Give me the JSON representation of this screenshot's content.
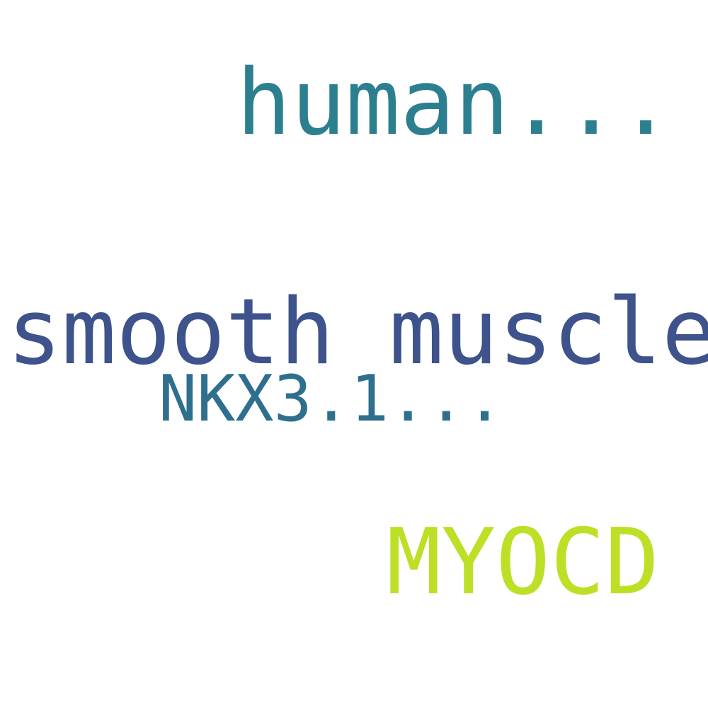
{
  "words": [
    {
      "text": "human...",
      "color": "#2c7f8e"
    },
    {
      "text": "smooth muscle",
      "color": "#3e528b"
    },
    {
      "text": "NKX3.1...",
      "color": "#2e6f8e"
    },
    {
      "text": "MYOCD",
      "color": "#bddf26"
    }
  ]
}
